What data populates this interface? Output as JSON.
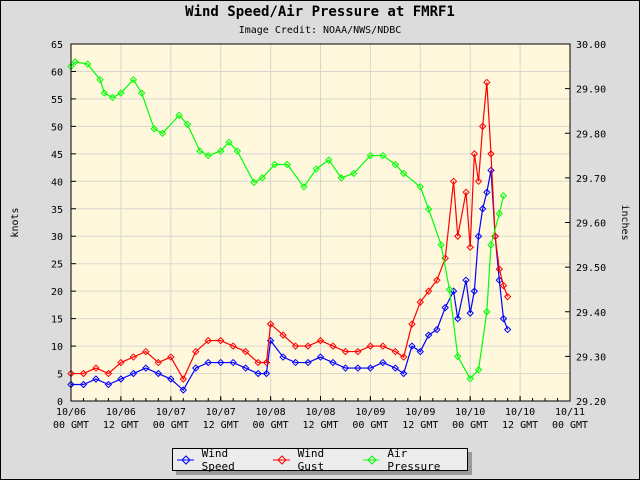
{
  "chart_data": {
    "type": "line",
    "title": "Wind Speed/Air Pressure at FMRF1",
    "subtitle": "Image Credit: NOAA/NWS/NDBC",
    "ylabel": "knots",
    "y2label": "inches",
    "ylim": [
      0,
      65
    ],
    "y2lim": [
      29.2,
      30.0
    ],
    "xlim": [
      "10/06 00",
      "10/11 00"
    ],
    "grid": true,
    "legend_position": "bottom",
    "x_tick_labels": [
      [
        "10/06",
        "00 GMT"
      ],
      [
        "10/06",
        "12 GMT"
      ],
      [
        "10/07",
        "00 GMT"
      ],
      [
        "10/07",
        "12 GMT"
      ],
      [
        "10/08",
        "00 GMT"
      ],
      [
        "10/08",
        "12 GMT"
      ],
      [
        "10/09",
        "00 GMT"
      ],
      [
        "10/09",
        "12 GMT"
      ],
      [
        "10/10",
        "00 GMT"
      ],
      [
        "10/10",
        "12 GMT"
      ],
      [
        "10/11",
        "00 GMT"
      ]
    ],
    "y_tick_labels": [
      "0",
      "5",
      "10",
      "15",
      "20",
      "25",
      "30",
      "35",
      "40",
      "45",
      "50",
      "55",
      "60",
      "65"
    ],
    "y2_tick_labels": [
      "29.20",
      "29.30",
      "29.40",
      "29.50",
      "29.60",
      "29.70",
      "29.80",
      "29.90",
      "30.00"
    ],
    "series": [
      {
        "name": "Wind Speed",
        "color": "#0000ff",
        "axis": "left",
        "points": [
          [
            "10/06 00",
            3
          ],
          [
            "10/06 03",
            3
          ],
          [
            "10/06 06",
            4
          ],
          [
            "10/06 09",
            3
          ],
          [
            "10/06 12",
            4
          ],
          [
            "10/06 15",
            5
          ],
          [
            "10/06 18",
            6
          ],
          [
            "10/06 21",
            5
          ],
          [
            "10/07 00",
            4
          ],
          [
            "10/07 03",
            2
          ],
          [
            "10/07 06",
            6
          ],
          [
            "10/07 09",
            7
          ],
          [
            "10/07 12",
            7
          ],
          [
            "10/07 15",
            7
          ],
          [
            "10/07 18",
            6
          ],
          [
            "10/07 21",
            5
          ],
          [
            "10/07 23",
            5
          ],
          [
            "10/08 00",
            11
          ],
          [
            "10/08 03",
            8
          ],
          [
            "10/08 06",
            7
          ],
          [
            "10/08 09",
            7
          ],
          [
            "10/08 12",
            8
          ],
          [
            "10/08 15",
            7
          ],
          [
            "10/08 18",
            6
          ],
          [
            "10/08 21",
            6
          ],
          [
            "10/09 00",
            6
          ],
          [
            "10/09 03",
            7
          ],
          [
            "10/09 06",
            6
          ],
          [
            "10/09 08",
            5
          ],
          [
            "10/09 10",
            10
          ],
          [
            "10/09 12",
            9
          ],
          [
            "10/09 14",
            12
          ],
          [
            "10/09 16",
            13
          ],
          [
            "10/09 18",
            17
          ],
          [
            "10/09 20",
            20
          ],
          [
            "10/09 21",
            15
          ],
          [
            "10/09 23",
            22
          ],
          [
            "10/10 00",
            16
          ],
          [
            "10/10 01",
            20
          ],
          [
            "10/10 02",
            30
          ],
          [
            "10/10 03",
            35
          ],
          [
            "10/10 04",
            38
          ],
          [
            "10/10 05",
            42
          ],
          [
            "10/10 06",
            30
          ],
          [
            "10/10 07",
            22
          ],
          [
            "10/10 08",
            15
          ],
          [
            "10/10 09",
            13
          ]
        ]
      },
      {
        "name": "Wind Gust",
        "color": "#ff0000",
        "axis": "left",
        "points": [
          [
            "10/06 00",
            5
          ],
          [
            "10/06 03",
            5
          ],
          [
            "10/06 06",
            6
          ],
          [
            "10/06 09",
            5
          ],
          [
            "10/06 12",
            7
          ],
          [
            "10/06 15",
            8
          ],
          [
            "10/06 18",
            9
          ],
          [
            "10/06 21",
            7
          ],
          [
            "10/07 00",
            8
          ],
          [
            "10/07 03",
            4
          ],
          [
            "10/07 06",
            9
          ],
          [
            "10/07 09",
            11
          ],
          [
            "10/07 12",
            11
          ],
          [
            "10/07 15",
            10
          ],
          [
            "10/07 18",
            9
          ],
          [
            "10/07 21",
            7
          ],
          [
            "10/07 23",
            7
          ],
          [
            "10/08 00",
            14
          ],
          [
            "10/08 03",
            12
          ],
          [
            "10/08 06",
            10
          ],
          [
            "10/08 09",
            10
          ],
          [
            "10/08 12",
            11
          ],
          [
            "10/08 15",
            10
          ],
          [
            "10/08 18",
            9
          ],
          [
            "10/08 21",
            9
          ],
          [
            "10/09 00",
            10
          ],
          [
            "10/09 03",
            10
          ],
          [
            "10/09 06",
            9
          ],
          [
            "10/09 08",
            8
          ],
          [
            "10/09 10",
            14
          ],
          [
            "10/09 12",
            18
          ],
          [
            "10/09 14",
            20
          ],
          [
            "10/09 16",
            22
          ],
          [
            "10/09 18",
            26
          ],
          [
            "10/09 20",
            40
          ],
          [
            "10/09 21",
            30
          ],
          [
            "10/09 23",
            38
          ],
          [
            "10/10 00",
            28
          ],
          [
            "10/10 01",
            45
          ],
          [
            "10/10 02",
            40
          ],
          [
            "10/10 03",
            50
          ],
          [
            "10/10 04",
            58
          ],
          [
            "10/10 05",
            45
          ],
          [
            "10/10 06",
            30
          ],
          [
            "10/10 07",
            24
          ],
          [
            "10/10 08",
            21
          ],
          [
            "10/10 09",
            19
          ]
        ]
      },
      {
        "name": "Air Pressure",
        "color": "#00ff00",
        "axis": "right",
        "points": [
          [
            "10/06 00",
            29.95
          ],
          [
            "10/06 01",
            29.96
          ],
          [
            "10/06 04",
            29.955
          ],
          [
            "10/06 07",
            29.92
          ],
          [
            "10/06 08",
            29.89
          ],
          [
            "10/06 10",
            29.88
          ],
          [
            "10/06 12",
            29.89
          ],
          [
            "10/06 15",
            29.92
          ],
          [
            "10/06 17",
            29.89
          ],
          [
            "10/06 20",
            29.81
          ],
          [
            "10/06 22",
            29.8
          ],
          [
            "10/07 02",
            29.84
          ],
          [
            "10/07 04",
            29.82
          ],
          [
            "10/07 07",
            29.76
          ],
          [
            "10/07 09",
            29.75
          ],
          [
            "10/07 12",
            29.76
          ],
          [
            "10/07 14",
            29.78
          ],
          [
            "10/07 16",
            29.76
          ],
          [
            "10/07 20",
            29.69
          ],
          [
            "10/07 22",
            29.7
          ],
          [
            "10/08 01",
            29.73
          ],
          [
            "10/08 04",
            29.73
          ],
          [
            "10/08 08",
            29.68
          ],
          [
            "10/08 11",
            29.72
          ],
          [
            "10/08 14",
            29.74
          ],
          [
            "10/08 17",
            29.7
          ],
          [
            "10/08 20",
            29.71
          ],
          [
            "10/09 00",
            29.75
          ],
          [
            "10/09 03",
            29.75
          ],
          [
            "10/09 06",
            29.73
          ],
          [
            "10/09 08",
            29.71
          ],
          [
            "10/09 12",
            29.68
          ],
          [
            "10/09 14",
            29.63
          ],
          [
            "10/09 17",
            29.55
          ],
          [
            "10/09 19",
            29.45
          ],
          [
            "10/09 21",
            29.3
          ],
          [
            "10/10 00",
            29.25
          ],
          [
            "10/10 02",
            29.27
          ],
          [
            "10/10 04",
            29.4
          ],
          [
            "10/10 05",
            29.55
          ],
          [
            "10/10 07",
            29.62
          ],
          [
            "10/10 08",
            29.66
          ]
        ]
      }
    ]
  }
}
